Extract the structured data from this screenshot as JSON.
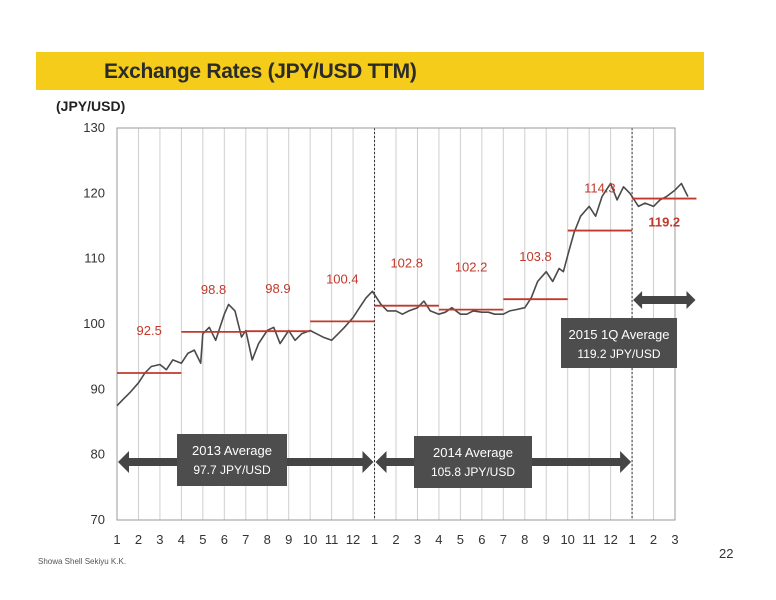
{
  "slide": {
    "title": "Exchange Rates (JPY/USD TTM)",
    "unit_label": "(JPY/USD)",
    "company": "Showa Shell Sekiyu K.K.",
    "page_number": "22"
  },
  "colors": {
    "title_band": "#f5cc1a",
    "rate_line": "#4a4a4a",
    "average_line": "#c0392b",
    "average_label": "#c0392b",
    "callout_box": "#4d4d4d",
    "grid": "#cfcfcf"
  },
  "chart_data": {
    "type": "line",
    "title": "Exchange Rates (JPY/USD TTM)",
    "ylabel": "(JPY/USD)",
    "ylim": [
      70,
      130
    ],
    "yticks": [
      70,
      80,
      90,
      100,
      110,
      120,
      130
    ],
    "month_labels": [
      "1",
      "2",
      "3",
      "4",
      "5",
      "6",
      "7",
      "8",
      "9",
      "10",
      "11",
      "12",
      "1",
      "2",
      "3",
      "4",
      "5",
      "6",
      "7",
      "8",
      "9",
      "10",
      "11",
      "12",
      "1",
      "2",
      "3"
    ],
    "years": [
      2013,
      2014,
      2015
    ],
    "grid": "vertical",
    "series": [
      {
        "name": "JPY/USD TTM",
        "x": [
          0.0,
          0.3,
          0.6,
          1.0,
          1.3,
          1.6,
          2.0,
          2.3,
          2.6,
          3.0,
          3.3,
          3.6,
          3.9,
          4.0,
          4.3,
          4.6,
          5.0,
          5.2,
          5.5,
          5.8,
          6.0,
          6.3,
          6.6,
          7.0,
          7.3,
          7.6,
          8.0,
          8.3,
          8.6,
          9.0,
          9.3,
          9.6,
          10.0,
          10.3,
          10.6,
          11.0,
          11.3,
          11.6,
          11.9,
          12.0,
          12.3,
          12.6,
          13.0,
          13.3,
          13.6,
          14.0,
          14.3,
          14.6,
          15.0,
          15.3,
          15.6,
          16.0,
          16.3,
          16.6,
          17.0,
          17.3,
          17.6,
          18.0,
          18.3,
          18.6,
          19.0,
          19.3,
          19.6,
          20.0,
          20.3,
          20.6,
          20.8,
          21.0,
          21.3,
          21.6,
          22.0,
          22.3,
          22.6,
          23.0,
          23.3,
          23.6,
          23.9,
          24.0,
          24.3,
          24.6,
          25.0,
          25.3,
          25.6,
          26.0,
          26.3,
          26.6
        ],
        "values": [
          87.5,
          88.5,
          89.5,
          91.0,
          92.5,
          93.5,
          93.8,
          93.0,
          94.5,
          94.0,
          95.5,
          96.0,
          94.0,
          98.5,
          99.5,
          97.5,
          101.5,
          103.0,
          102.0,
          98.0,
          99.0,
          94.5,
          97.0,
          99.0,
          99.5,
          97.0,
          99.0,
          97.5,
          98.5,
          99.0,
          98.5,
          98.0,
          97.5,
          98.5,
          99.5,
          101.0,
          102.5,
          104.0,
          105.0,
          104.5,
          103.0,
          102.0,
          102.0,
          101.5,
          102.0,
          102.5,
          103.5,
          102.0,
          101.5,
          101.8,
          102.5,
          101.5,
          101.5,
          102.0,
          101.8,
          101.8,
          101.5,
          101.5,
          102.0,
          102.2,
          102.5,
          104.0,
          106.5,
          108.0,
          106.5,
          108.5,
          108.0,
          110.5,
          114.0,
          116.5,
          118.0,
          116.5,
          119.5,
          121.5,
          119.0,
          121.0,
          120.0,
          119.5,
          118.0,
          118.5,
          118.0,
          119.0,
          119.5,
          120.5,
          121.5,
          119.5
        ]
      }
    ],
    "monthly_averages": [
      {
        "label": "92.5",
        "value": 92.5,
        "x_start": 0,
        "x_end": 3
      },
      {
        "label": "98.8",
        "value": 98.8,
        "x_start": 3,
        "x_end": 6
      },
      {
        "label": "98.9",
        "value": 98.9,
        "x_start": 6,
        "x_end": 9
      },
      {
        "label": "100.4",
        "value": 100.4,
        "x_start": 9,
        "x_end": 12
      },
      {
        "label": "102.8",
        "value": 102.8,
        "x_start": 12,
        "x_end": 15
      },
      {
        "label": "102.2",
        "value": 102.2,
        "x_start": 15,
        "x_end": 18
      },
      {
        "label": "103.8",
        "value": 103.8,
        "x_start": 18,
        "x_end": 21
      },
      {
        "label": "114.3",
        "value": 114.3,
        "x_start": 21,
        "x_end": 24
      },
      {
        "label": "119.2",
        "value": 119.2,
        "x_start": 24,
        "x_end": 27
      }
    ],
    "year_dividers": [
      12,
      24
    ],
    "annotations": [
      {
        "line1": "2013  Average",
        "line2": "97.7 JPY/USD",
        "x_start": 0,
        "x_end": 12
      },
      {
        "line1": "2014 Average",
        "line2": "105.8 JPY/USD",
        "x_start": 12,
        "x_end": 24
      },
      {
        "line1": "2015 1Q Average",
        "line2": "119.2 JPY/USD",
        "x_start": 24,
        "x_end": 27
      }
    ]
  }
}
